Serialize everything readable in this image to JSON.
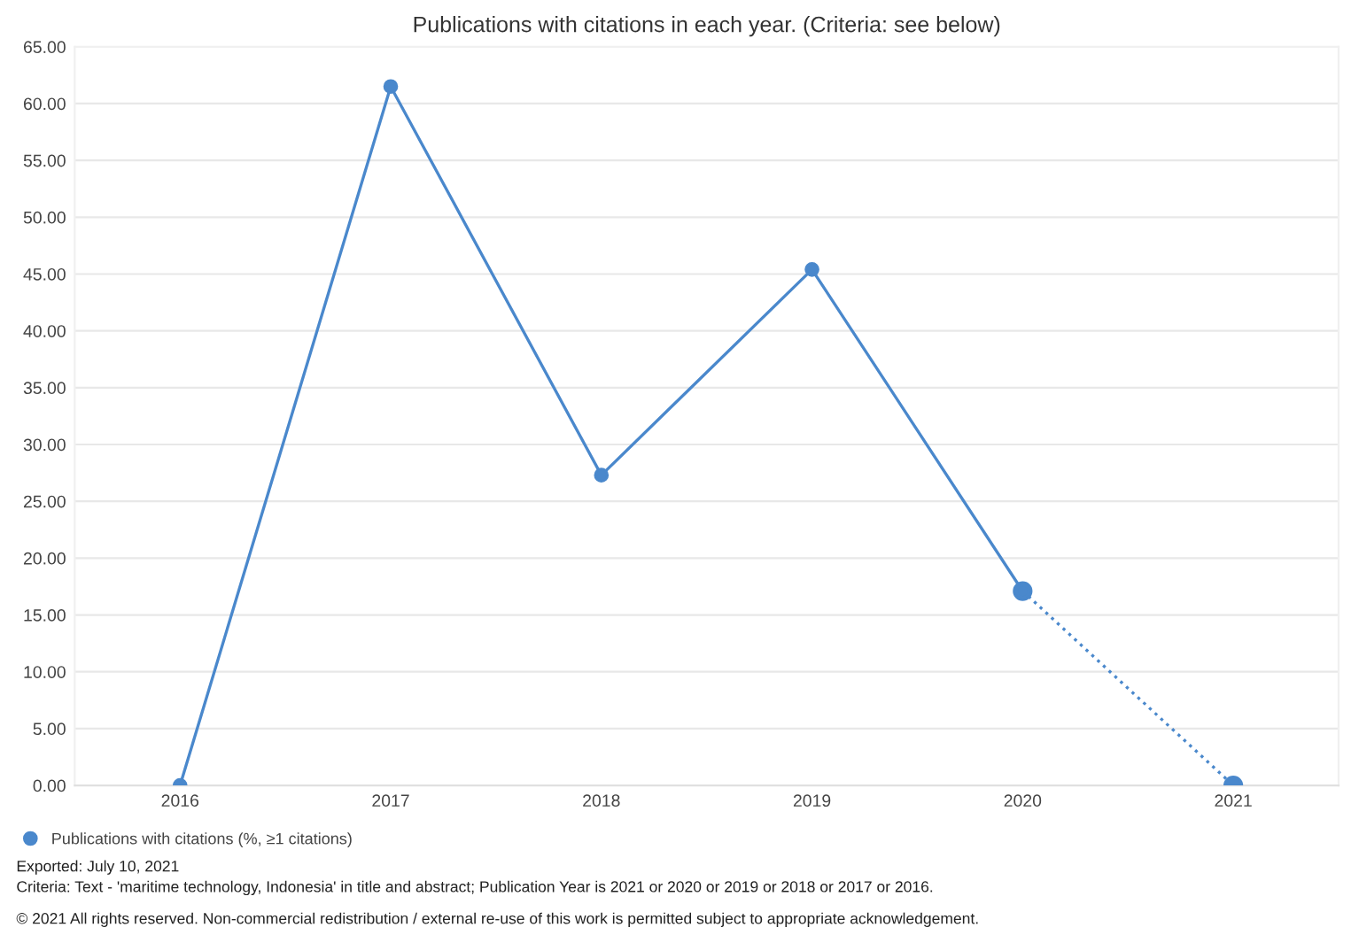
{
  "chart_data": {
    "type": "line",
    "title": "Publications with citations in each year. (Criteria: see below)",
    "categories": [
      "2016",
      "2017",
      "2018",
      "2019",
      "2020",
      "2021"
    ],
    "series": [
      {
        "name": "Publications with citations (%, ≥1 citations)",
        "color": "#4a88cc",
        "values": [
          0,
          61.5,
          27.3,
          45.4,
          17.1,
          null
        ],
        "line_style": "solid"
      },
      {
        "color": "#4a88cc",
        "values": [
          null,
          null,
          null,
          null,
          17.1,
          0
        ],
        "line_style": "dotted"
      }
    ],
    "ylim": [
      0,
      65
    ],
    "yticks": [
      {
        "value": 0,
        "label": "0.00"
      },
      {
        "value": 5,
        "label": "5.00"
      },
      {
        "value": 10,
        "label": "10.00"
      },
      {
        "value": 15,
        "label": "15.00"
      },
      {
        "value": 20,
        "label": "20.00"
      },
      {
        "value": 25,
        "label": "25.00"
      },
      {
        "value": 30,
        "label": "30.00"
      },
      {
        "value": 35,
        "label": "35.00"
      },
      {
        "value": 40,
        "label": "40.00"
      },
      {
        "value": 45,
        "label": "45.00"
      },
      {
        "value": 50,
        "label": "50.00"
      },
      {
        "value": 55,
        "label": "55.00"
      },
      {
        "value": 60,
        "label": "60.00"
      },
      {
        "value": 65,
        "label": "65.00"
      }
    ],
    "grid": "y",
    "legend": "bottom left",
    "marker": "circle",
    "annotations": [
      "Exported: July 10, 2021",
      "Criteria: Text - 'maritime technology, Indonesia' in title and abstract; Publication Year is 2021 or 2020 or 2019 or 2018 or 2017 or 2016.",
      "© 2021 All rights reserved. Non-commercial redistribution / external re-use of this work is permitted subject to appropriate acknowledgement."
    ]
  }
}
